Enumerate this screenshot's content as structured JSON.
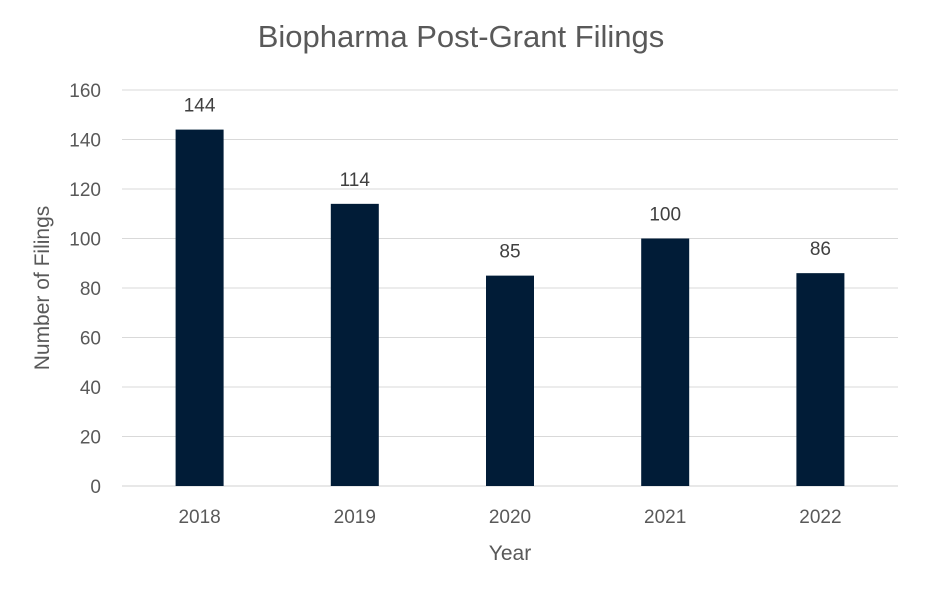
{
  "chart_data": {
    "type": "bar",
    "title": "Biopharma Post-Grant Filings",
    "xlabel": "Year",
    "ylabel": "Number of Filings",
    "categories": [
      "2018",
      "2019",
      "2020",
      "2021",
      "2022"
    ],
    "values": [
      144,
      114,
      85,
      100,
      86
    ],
    "data_labels": [
      "144",
      "114",
      "85",
      "100",
      "86"
    ],
    "ylim": [
      0,
      160
    ],
    "yticks": [
      0,
      20,
      40,
      60,
      80,
      100,
      120,
      140,
      160
    ],
    "ytick_labels": [
      "0",
      "20",
      "40",
      "60",
      "80",
      "100",
      "120",
      "140",
      "160"
    ],
    "grid": true,
    "legend": "none",
    "bar_color": "#011c37",
    "grid_color": "#d9d9d9",
    "text_color": "#595959"
  }
}
